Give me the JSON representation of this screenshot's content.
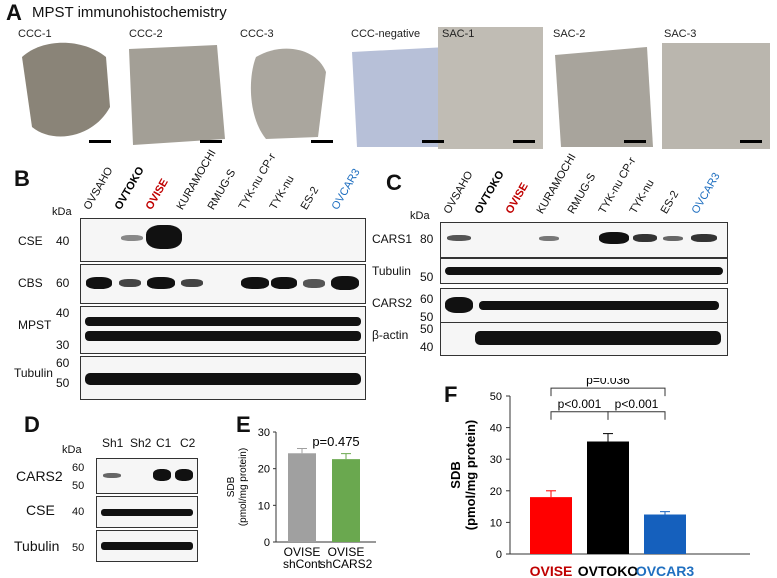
{
  "panelA": {
    "letter": "A",
    "title": "MPST immunohistochemistry",
    "tiles": [
      "CCC-1",
      "CCC-2",
      "CCC-3",
      "CCC-negative",
      "SAC-1",
      "SAC-2",
      "SAC-3"
    ]
  },
  "panelB": {
    "letter": "B",
    "kda": "kDa",
    "cell_lines": [
      "OVSAHO",
      "OVTOKO",
      "OVISE",
      "KURAMOCHI",
      "RMUG-S",
      "TYK-nu CP-r",
      "TYK-nu",
      "ES-2",
      "OVCAR3"
    ],
    "rows": [
      {
        "name": "CSE",
        "markers": [
          "40"
        ]
      },
      {
        "name": "CBS",
        "markers": [
          "60"
        ]
      },
      {
        "name": "MPST",
        "markers": [
          "40",
          "30"
        ]
      },
      {
        "name": "Tubulin",
        "markers": [
          "60",
          "50"
        ]
      }
    ]
  },
  "panelC": {
    "letter": "C",
    "kda": "kDa",
    "cell_lines": [
      "OVSAHO",
      "OVTOKO",
      "OVISE",
      "KURAMOCHI",
      "RMUG-S",
      "TYK-nu CP-r",
      "TYK-nu",
      "ES-2",
      "OVCAR3"
    ],
    "rows": [
      {
        "name": "CARS1",
        "markers": [
          "80"
        ]
      },
      {
        "name": "Tubulin",
        "markers": [
          "50"
        ]
      },
      {
        "name": "CARS2",
        "markers": [
          "60",
          "50"
        ]
      },
      {
        "name": "β-actin",
        "markers": [
          "50",
          "40"
        ]
      }
    ]
  },
  "panelD": {
    "letter": "D",
    "kda": "kDa",
    "lanes": [
      "Sh1",
      "Sh2",
      "C1",
      "C2"
    ],
    "rows": [
      {
        "name": "CARS2",
        "markers": [
          "60",
          "50"
        ]
      },
      {
        "name": "CSE",
        "markers": [
          "40"
        ]
      },
      {
        "name": "Tubulin",
        "markers": [
          "50"
        ]
      }
    ]
  },
  "colors": {
    "OVTOKO": "#000000",
    "OVISE": "#c00000",
    "OVCAR3": "#1f6fc0",
    "gray_bar": "#a0a0a0",
    "green_bar": "#6aa84f",
    "red_bar": "#ff0000",
    "black_bar": "#000000",
    "blue_bar": "#1560bd"
  },
  "chart_data": [
    {
      "type": "bar",
      "panel": "E",
      "categories": [
        "OVISE\nshCont",
        "OVISE\nshCARS2"
      ],
      "values": [
        24.2,
        22.6
      ],
      "errors": [
        1.3,
        1.5
      ],
      "ylabel_line1": "SDB",
      "ylabel_line2": "(pmol/mg protein)",
      "ylim": [
        0,
        30
      ],
      "yticks": [
        0,
        10,
        20,
        30
      ],
      "annotation": "p=0.475"
    },
    {
      "type": "bar",
      "panel": "F",
      "categories": [
        "OVISE",
        "OVTOKO",
        "OVCAR3"
      ],
      "values": [
        18.0,
        35.6,
        12.5
      ],
      "errors": [
        2.0,
        2.5,
        0.9
      ],
      "ylabel_line1": "SDB",
      "ylabel_line2": "(pmol/mg protein)",
      "ylim": [
        0,
        50
      ],
      "yticks": [
        0,
        10,
        20,
        30,
        40,
        50
      ],
      "annotations": [
        "p<0.001",
        "p<0.001",
        "p=0.036"
      ]
    }
  ]
}
